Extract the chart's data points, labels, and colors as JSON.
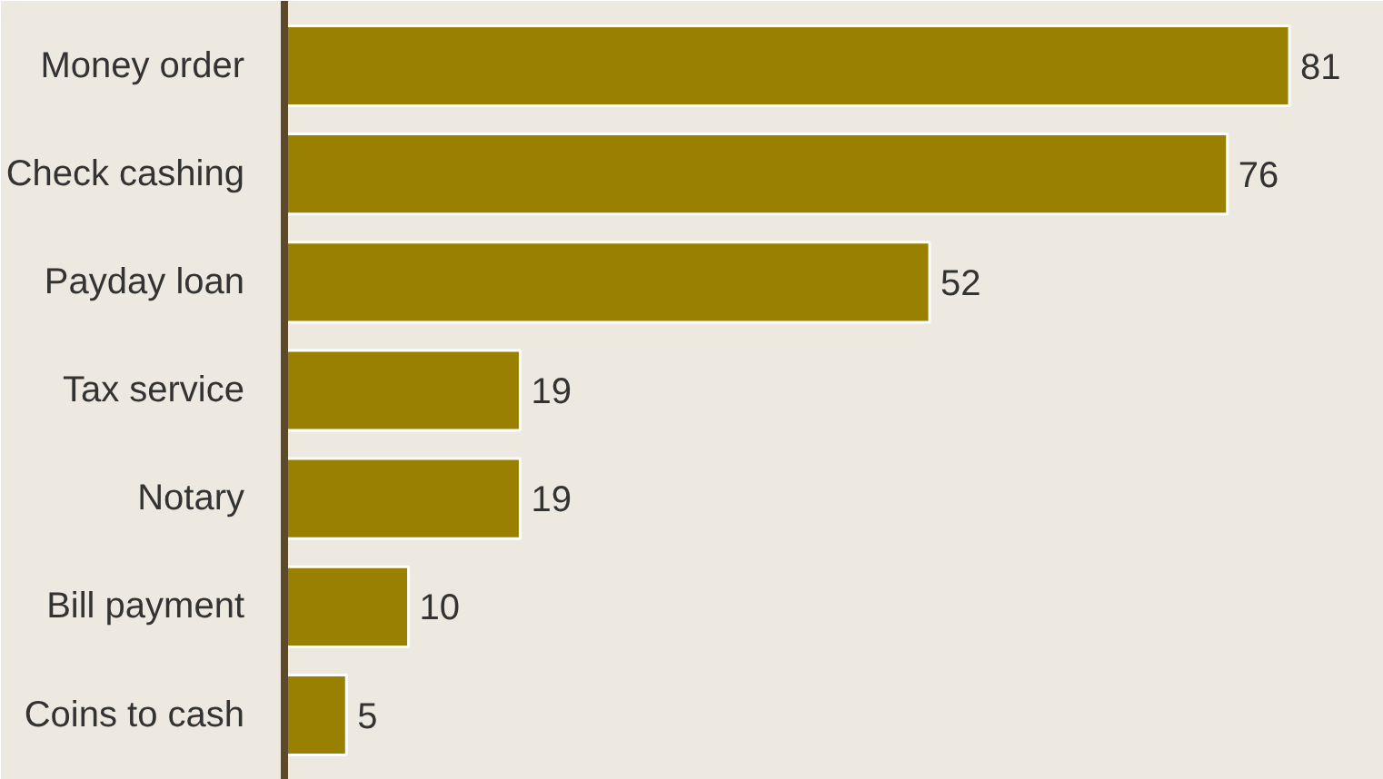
{
  "chart_data": {
    "type": "bar",
    "orientation": "horizontal",
    "categories": [
      "Money order",
      "Check cashing",
      "Payday loan",
      "Tax service",
      "Notary",
      "Bill payment",
      "Coins to cash"
    ],
    "values": [
      81,
      76,
      52,
      19,
      19,
      10,
      5
    ],
    "color": "#9a8000",
    "data_labels": true
  }
}
